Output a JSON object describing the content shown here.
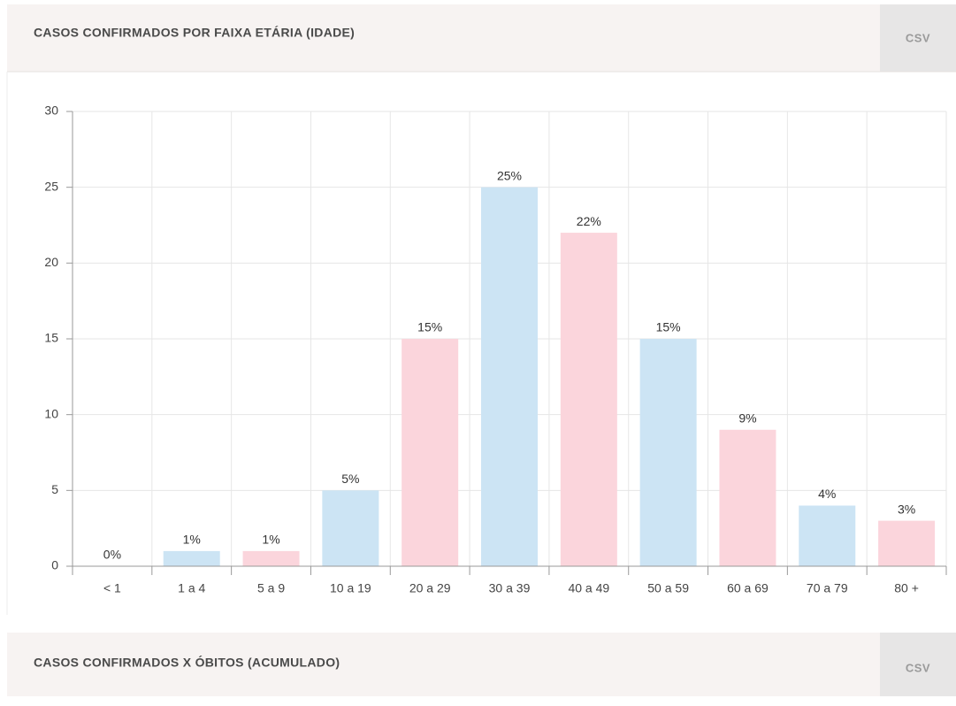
{
  "panels": [
    {
      "title": "CASOS CONFIRMADOS POR FAIXA ETÁRIA (IDADE)",
      "button": "CSV"
    },
    {
      "title": "CASOS CONFIRMADOS X ÓBITOS (ACUMULADO)",
      "button": "CSV"
    }
  ],
  "chart_data": {
    "type": "bar",
    "categories": [
      "< 1",
      "1 a 4",
      "5 a 9",
      "10 a 19",
      "20 a 29",
      "30 a 39",
      "40 a 49",
      "50 a 59",
      "60 a 69",
      "70 a 79",
      "80 +"
    ],
    "values": [
      0,
      1,
      1,
      5,
      15,
      25,
      22,
      15,
      9,
      4,
      3
    ],
    "value_labels": [
      "0%",
      "1%",
      "1%",
      "5%",
      "15%",
      "25%",
      "22%",
      "15%",
      "9%",
      "4%",
      "3%"
    ],
    "colors": [
      "#cce4f4",
      "#cce4f4",
      "#fbd5dc",
      "#cce4f4",
      "#fbd5dc",
      "#cce4f4",
      "#fbd5dc",
      "#cce4f4",
      "#fbd5dc",
      "#cce4f4",
      "#fbd5dc"
    ],
    "ylim": [
      0,
      30
    ],
    "yticks": [
      0,
      5,
      10,
      15,
      20,
      25,
      30
    ],
    "grid": true
  }
}
